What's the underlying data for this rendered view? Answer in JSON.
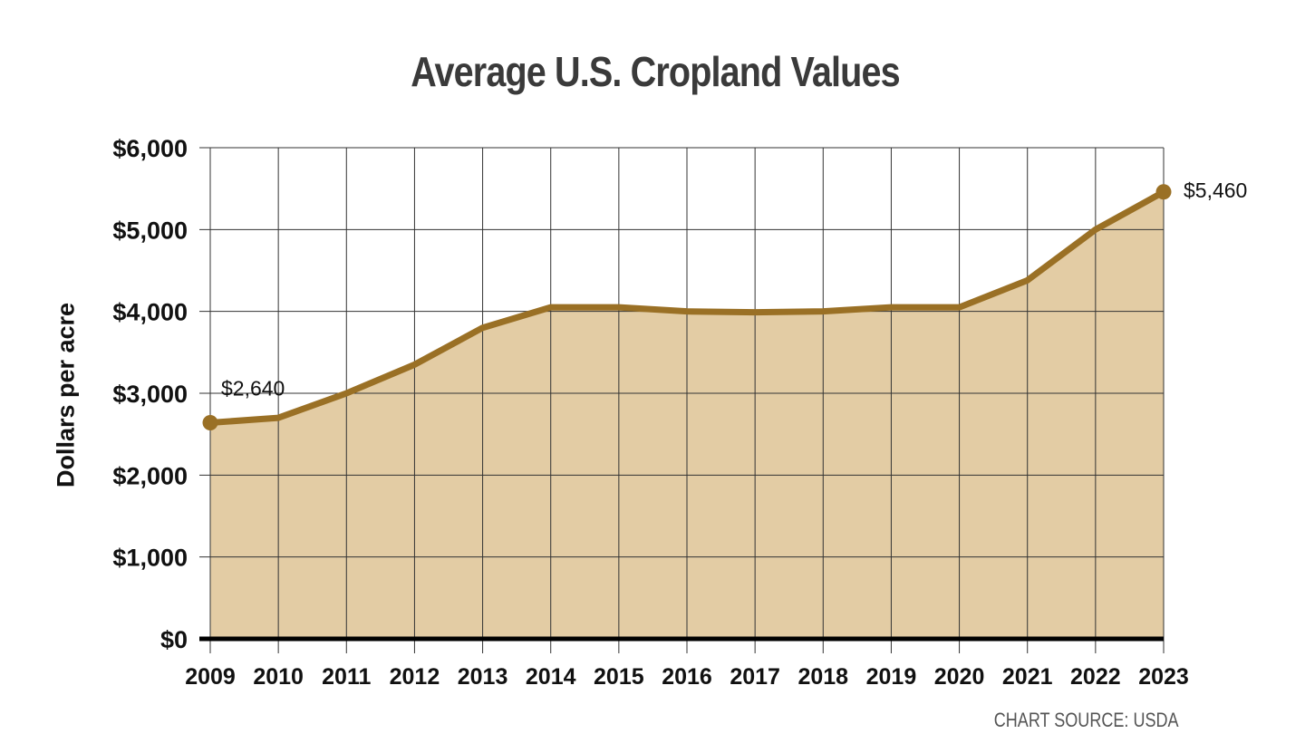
{
  "colors": {
    "line": "#9a7025",
    "fill": "#e3cca4",
    "grid": "#333333",
    "baseline": "#000000"
  },
  "chart_data": {
    "type": "area",
    "title": "Average U.S. Cropland Values",
    "ylabel": "Dollars per acre",
    "xlabel": "",
    "source": "CHART SOURCE: USDA",
    "x": [
      "2009",
      "2010",
      "2011",
      "2012",
      "2013",
      "2014",
      "2015",
      "2016",
      "2017",
      "2018",
      "2019",
      "2020",
      "2021",
      "2022",
      "2023"
    ],
    "values": [
      2640,
      2700,
      3000,
      3350,
      3800,
      4050,
      4050,
      4000,
      3990,
      4000,
      4050,
      4050,
      4380,
      5000,
      5460
    ],
    "ylim": [
      0,
      6000
    ],
    "yticks": [
      0,
      1000,
      2000,
      3000,
      4000,
      5000,
      6000
    ],
    "ytick_labels": [
      "$0",
      "$1,000",
      "$2,000",
      "$3,000",
      "$4,000",
      "$5,000",
      "$6,000"
    ],
    "grid": true,
    "annotations": [
      {
        "index": 0,
        "text": "$2,640"
      },
      {
        "index": 14,
        "text": "$5,460"
      }
    ]
  }
}
